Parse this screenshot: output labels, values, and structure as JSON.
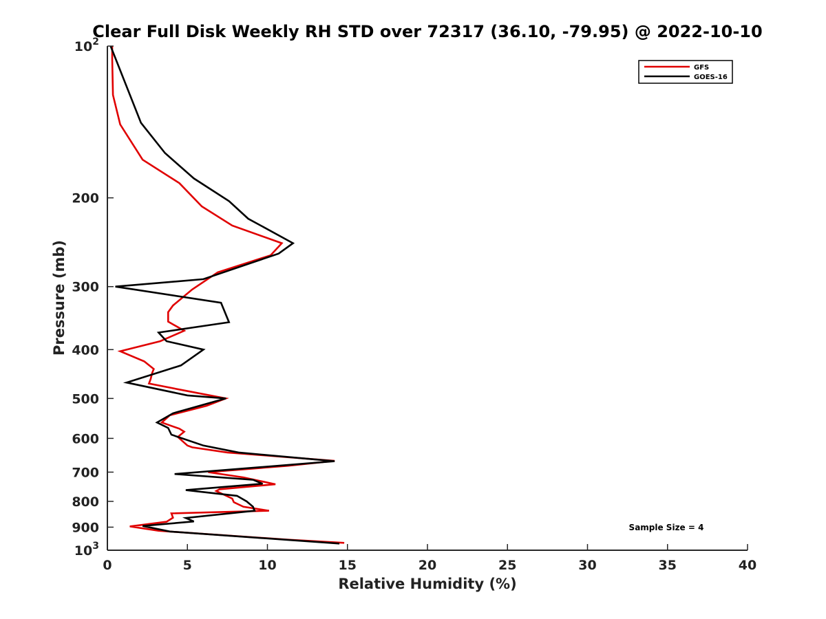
{
  "chart_data": {
    "type": "line",
    "title": "Clear Full Disk Weekly RH STD over 72317 (36.10, -79.95) @ 2022-10-10",
    "xlabel": "Relative Humidity (%)",
    "ylabel": "Pressure (mb)",
    "xlim": [
      0,
      40
    ],
    "ylim": [
      100,
      1000
    ],
    "yscale": "log",
    "y_reversed": true,
    "x_ticks": [
      "0",
      "5",
      "10",
      "15",
      "20",
      "25",
      "30",
      "35",
      "40"
    ],
    "y_ticks": [
      {
        "value": 100,
        "base": "10",
        "exp": "2"
      },
      {
        "value": 200,
        "label": "200"
      },
      {
        "value": 300,
        "label": "300"
      },
      {
        "value": 400,
        "label": "400"
      },
      {
        "value": 500,
        "label": "500"
      },
      {
        "value": 600,
        "label": "600"
      },
      {
        "value": 700,
        "label": "700"
      },
      {
        "value": 800,
        "label": "800"
      },
      {
        "value": 900,
        "label": "900"
      },
      {
        "value": 1000,
        "base": "10",
        "exp": "3"
      }
    ],
    "grid": false,
    "legend_position": "top-right",
    "annotation": "Sample Size = 4",
    "series": [
      {
        "name": "GFS",
        "color": "#e00000",
        "points": [
          [
            0.3,
            100
          ],
          [
            0.3,
            106
          ],
          [
            0.35,
            125
          ],
          [
            0.8,
            143
          ],
          [
            2.2,
            168
          ],
          [
            4.5,
            187
          ],
          [
            5.9,
            208
          ],
          [
            7.8,
            227
          ],
          [
            10.9,
            246
          ],
          [
            10.2,
            260
          ],
          [
            6.9,
            281
          ],
          [
            5.3,
            304
          ],
          [
            4.1,
            327
          ],
          [
            3.8,
            337
          ],
          [
            3.8,
            352
          ],
          [
            4.8,
            367
          ],
          [
            3.3,
            385
          ],
          [
            0.8,
            403
          ],
          [
            2.3,
            422
          ],
          [
            2.9,
            437
          ],
          [
            2.8,
            445
          ],
          [
            2.7,
            458
          ],
          [
            2.6,
            467
          ],
          [
            4.8,
            482
          ],
          [
            7.4,
            500
          ],
          [
            6.2,
            517
          ],
          [
            3.9,
            540
          ],
          [
            3.4,
            558
          ],
          [
            4.5,
            574
          ],
          [
            4.8,
            582
          ],
          [
            4.4,
            596
          ],
          [
            5.0,
            620
          ],
          [
            5.3,
            625
          ],
          [
            7.5,
            640
          ],
          [
            14.2,
            665
          ],
          [
            11.3,
            680
          ],
          [
            6.3,
            700
          ],
          [
            8.5,
            717
          ],
          [
            10.5,
            740
          ],
          [
            7.0,
            757
          ],
          [
            6.8,
            763
          ],
          [
            7.8,
            790
          ],
          [
            7.9,
            803
          ],
          [
            8.5,
            820
          ],
          [
            10.1,
            835
          ],
          [
            4.0,
            845
          ],
          [
            4.1,
            862
          ],
          [
            3.7,
            878
          ],
          [
            1.4,
            897
          ],
          [
            3.2,
            915
          ],
          [
            11.3,
            953
          ],
          [
            14.8,
            967
          ]
        ]
      },
      {
        "name": "GOES-16",
        "color": "#000000",
        "points": [
          [
            0.2,
            100
          ],
          [
            2.1,
            142
          ],
          [
            3.6,
            163
          ],
          [
            5.4,
            183
          ],
          [
            7.6,
            203
          ],
          [
            8.8,
            220
          ],
          [
            11.6,
            246
          ],
          [
            10.7,
            258
          ],
          [
            6.0,
            290
          ],
          [
            0.5,
            300
          ],
          [
            7.1,
            323
          ],
          [
            7.6,
            353
          ],
          [
            3.2,
            370
          ],
          [
            3.7,
            385
          ],
          [
            6.0,
            400
          ],
          [
            4.6,
            430
          ],
          [
            1.2,
            465
          ],
          [
            5.0,
            493
          ],
          [
            7.4,
            500
          ],
          [
            4.1,
            535
          ],
          [
            3.1,
            558
          ],
          [
            3.8,
            572
          ],
          [
            4.0,
            590
          ],
          [
            6.0,
            620
          ],
          [
            8.2,
            640
          ],
          [
            14.2,
            666
          ],
          [
            4.2,
            706
          ],
          [
            9.1,
            725
          ],
          [
            9.7,
            738
          ],
          [
            4.9,
            760
          ],
          [
            8.1,
            780
          ],
          [
            8.7,
            800
          ],
          [
            9.1,
            820
          ],
          [
            9.2,
            835
          ],
          [
            4.9,
            863
          ],
          [
            5.4,
            877
          ],
          [
            2.2,
            895
          ],
          [
            3.9,
            918
          ],
          [
            14.5,
            970
          ]
        ]
      }
    ]
  }
}
